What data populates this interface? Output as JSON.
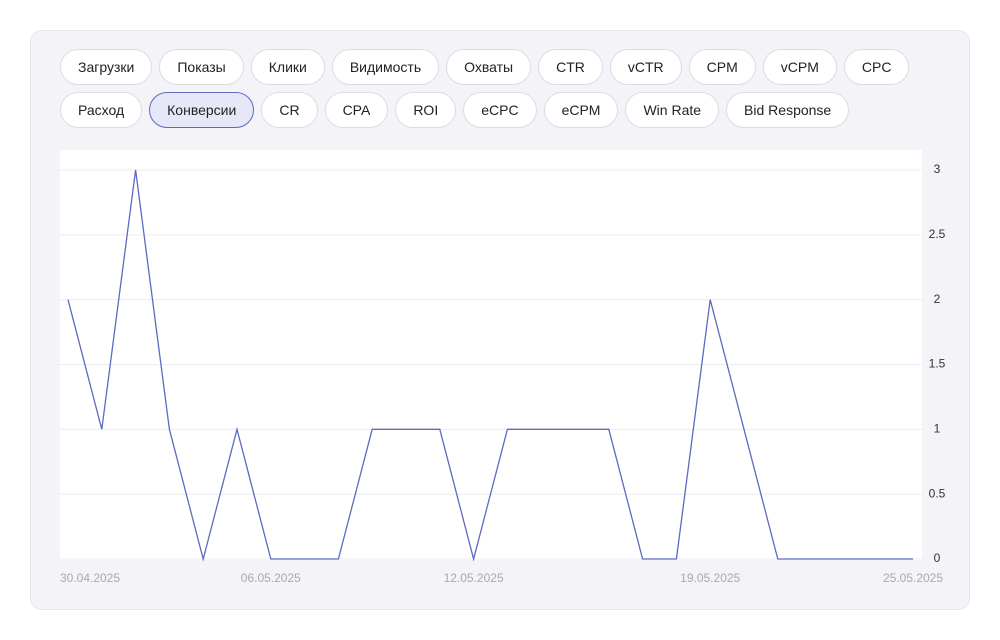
{
  "tabs": [
    {
      "label": "Загрузки",
      "active": false
    },
    {
      "label": "Показы",
      "active": false
    },
    {
      "label": "Клики",
      "active": false
    },
    {
      "label": "Видимость",
      "active": false
    },
    {
      "label": "Охваты",
      "active": false
    },
    {
      "label": "CTR",
      "active": false
    },
    {
      "label": "vCTR",
      "active": false
    },
    {
      "label": "CPM",
      "active": false
    },
    {
      "label": "vCPM",
      "active": false
    },
    {
      "label": "CPC",
      "active": false
    },
    {
      "label": "Расход",
      "active": false
    },
    {
      "label": "Конверсии",
      "active": true
    },
    {
      "label": "CR",
      "active": false
    },
    {
      "label": "CPA",
      "active": false
    },
    {
      "label": "ROI",
      "active": false
    },
    {
      "label": "eCPC",
      "active": false
    },
    {
      "label": "eCPM",
      "active": false
    },
    {
      "label": "Win Rate",
      "active": false
    },
    {
      "label": "Bid Response",
      "active": false
    }
  ],
  "chart_data": {
    "type": "line",
    "categories": [
      "30.04.2025",
      null,
      null,
      null,
      null,
      null,
      "06.05.2025",
      null,
      null,
      null,
      null,
      null,
      "12.05.2025",
      null,
      null,
      null,
      null,
      null,
      null,
      "19.05.2025",
      null,
      null,
      null,
      null,
      null,
      "25.05.2025"
    ],
    "series": [
      {
        "color": "#5b6bc0",
        "values": [
          2,
          1,
          3,
          1,
          0,
          1,
          0,
          0,
          0,
          1,
          1,
          1,
          0,
          1,
          1,
          1,
          1,
          0,
          0,
          2,
          1,
          0,
          0,
          0,
          0,
          0
        ]
      }
    ],
    "ylim": [
      0,
      3
    ],
    "yticks": [
      0,
      0.5,
      1,
      1.5,
      2,
      2.5,
      3
    ],
    "grid": true,
    "y_axis_side": "right"
  }
}
